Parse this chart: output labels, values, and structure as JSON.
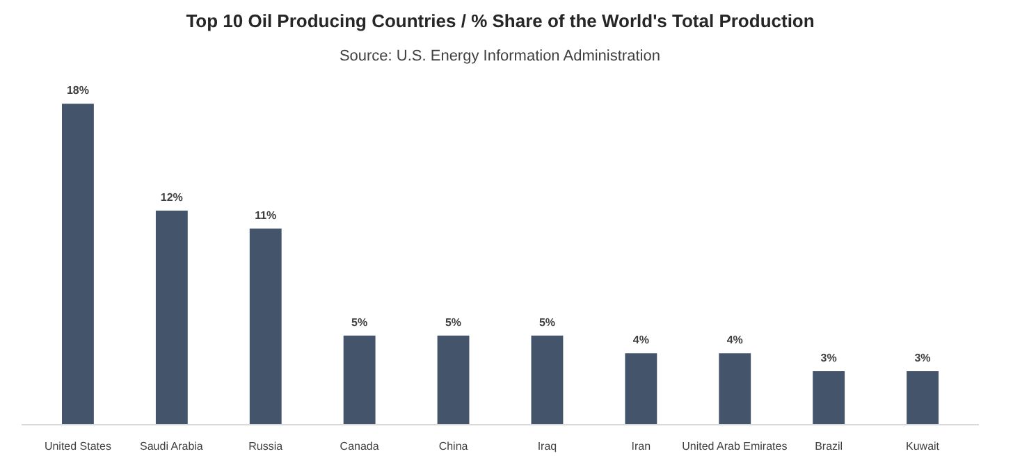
{
  "chart_data": {
    "type": "bar",
    "title": "Top 10 Oil Producing Countries / % Share of the World's Total Production",
    "subtitle": "Source: U.S. Energy Information Administration",
    "categories": [
      "United States",
      "Saudi Arabia",
      "Russia",
      "Canada",
      "China",
      "Iraq",
      "Iran",
      "United Arab Emirates",
      "Brazil",
      "Kuwait"
    ],
    "values": [
      18,
      12,
      11,
      5,
      5,
      5,
      4,
      4,
      3,
      3
    ],
    "value_labels": [
      "18%",
      "12%",
      "11%",
      "5%",
      "5%",
      "5%",
      "4%",
      "4%",
      "3%",
      "3%"
    ],
    "color": "#44546a",
    "grid": false
  }
}
